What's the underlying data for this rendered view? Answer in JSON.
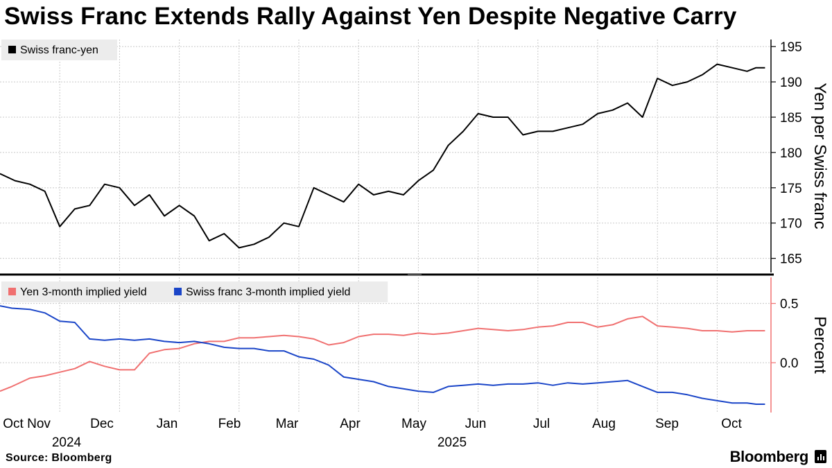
{
  "title": "Swiss Franc Extends Rally Against Yen Despite Negative Carry",
  "footer": {
    "source": "Source:  Bloomberg",
    "brand": "Bloomberg"
  },
  "icons": {
    "brand": "bloomberg-chart-icon"
  },
  "colors": {
    "chf_jpy": "#000000",
    "yen_yield": "#f07070",
    "chf_yield": "#1a45c8",
    "grid": "#c8c8c8",
    "legend_bg": "#ececec"
  },
  "chart_data": [
    {
      "type": "line",
      "title": "Swiss Franc Extends Rally Against Yen Despite Negative Carry",
      "ylabel": "Yen per Swiss franc",
      "ylim": [
        163,
        196
      ],
      "yticks": [
        "195",
        "190",
        "185",
        "180",
        "175",
        "170",
        "165"
      ],
      "xlim": [
        0,
        12.9
      ],
      "grid": true,
      "legend": "top-left",
      "series": [
        {
          "name": "Swiss franc-yen",
          "color": "#000000",
          "x": [
            0,
            0.25,
            0.5,
            0.75,
            1.0,
            1.25,
            1.5,
            1.75,
            2.0,
            2.25,
            2.5,
            2.75,
            3.0,
            3.25,
            3.5,
            3.75,
            4.0,
            4.25,
            4.5,
            4.75,
            5.0,
            5.25,
            5.5,
            5.75,
            6.0,
            6.25,
            6.5,
            6.75,
            7.0,
            7.25,
            7.5,
            7.75,
            8.0,
            8.25,
            8.5,
            8.75,
            9.0,
            9.25,
            9.5,
            9.75,
            10.0,
            10.25,
            10.5,
            10.75,
            11.0,
            11.25,
            11.5,
            11.75,
            12.0,
            12.25,
            12.5,
            12.65,
            12.8
          ],
          "values": [
            177,
            176,
            175.5,
            174.5,
            169.5,
            172,
            172.5,
            175.5,
            175,
            172.5,
            174,
            171,
            172.5,
            171,
            167.5,
            168.5,
            166.5,
            167,
            168,
            170,
            169.5,
            175,
            174,
            173,
            175.5,
            174,
            174.5,
            174,
            176,
            177.5,
            181,
            183,
            185.5,
            185,
            185,
            182.5,
            183,
            183,
            183.5,
            184,
            185.5,
            186,
            187,
            185,
            190.5,
            189.5,
            190,
            191,
            192.5,
            192,
            191.5,
            192,
            192
          ]
        }
      ]
    },
    {
      "type": "line",
      "ylabel": "Percent",
      "ylim": [
        -0.42,
        0.72
      ],
      "yticks": [
        "0.5",
        "0.0"
      ],
      "xlim": [
        0,
        12.9
      ],
      "grid": true,
      "legend": "top-left",
      "x_tick_labels": [
        "Oct",
        "Nov",
        "Dec",
        "Jan",
        "Feb",
        "Mar",
        "Apr",
        "May",
        "Jun",
        "Jul",
        "Aug",
        "Sep",
        "Oct"
      ],
      "year_labels": [
        "2024",
        "2025"
      ],
      "series": [
        {
          "name": "Yen 3-month implied yield",
          "color": "#f07070",
          "x": [
            0,
            0.2,
            0.5,
            0.75,
            1.0,
            1.25,
            1.5,
            1.75,
            2.0,
            2.25,
            2.5,
            2.75,
            3.0,
            3.25,
            3.5,
            3.75,
            4.0,
            4.25,
            4.5,
            4.75,
            5.0,
            5.25,
            5.5,
            5.75,
            6.0,
            6.25,
            6.5,
            6.75,
            7.0,
            7.25,
            7.5,
            7.75,
            8.0,
            8.25,
            8.5,
            8.75,
            9.0,
            9.25,
            9.5,
            9.75,
            10.0,
            10.25,
            10.5,
            10.75,
            11.0,
            11.25,
            11.5,
            11.75,
            12.0,
            12.25,
            12.5,
            12.65,
            12.8
          ],
          "values": [
            -0.24,
            -0.2,
            -0.13,
            -0.11,
            -0.08,
            -0.05,
            0.01,
            -0.03,
            -0.06,
            -0.06,
            0.08,
            0.11,
            0.12,
            0.16,
            0.18,
            0.18,
            0.21,
            0.21,
            0.22,
            0.23,
            0.22,
            0.2,
            0.15,
            0.17,
            0.22,
            0.24,
            0.24,
            0.23,
            0.25,
            0.24,
            0.25,
            0.27,
            0.29,
            0.28,
            0.27,
            0.28,
            0.3,
            0.31,
            0.34,
            0.34,
            0.3,
            0.32,
            0.37,
            0.39,
            0.31,
            0.3,
            0.29,
            0.27,
            0.27,
            0.26,
            0.27,
            0.27,
            0.27
          ]
        },
        {
          "name": "Swiss franc 3-month implied yield",
          "color": "#1a45c8",
          "x": [
            0,
            0.2,
            0.5,
            0.75,
            1.0,
            1.25,
            1.5,
            1.75,
            2.0,
            2.25,
            2.5,
            2.75,
            3.0,
            3.25,
            3.5,
            3.75,
            4.0,
            4.25,
            4.5,
            4.75,
            5.0,
            5.25,
            5.5,
            5.75,
            6.0,
            6.25,
            6.5,
            6.75,
            7.0,
            7.25,
            7.5,
            7.75,
            8.0,
            8.25,
            8.5,
            8.75,
            9.0,
            9.25,
            9.5,
            9.75,
            10.0,
            10.25,
            10.5,
            10.75,
            11.0,
            11.25,
            11.5,
            11.75,
            12.0,
            12.25,
            12.5,
            12.65,
            12.8
          ],
          "values": [
            0.48,
            0.46,
            0.45,
            0.42,
            0.35,
            0.34,
            0.2,
            0.19,
            0.2,
            0.19,
            0.2,
            0.18,
            0.17,
            0.18,
            0.16,
            0.13,
            0.12,
            0.12,
            0.1,
            0.1,
            0.05,
            0.03,
            -0.02,
            -0.12,
            -0.14,
            -0.16,
            -0.2,
            -0.22,
            -0.24,
            -0.25,
            -0.2,
            -0.19,
            -0.18,
            -0.19,
            -0.18,
            -0.18,
            -0.17,
            -0.19,
            -0.17,
            -0.18,
            -0.17,
            -0.16,
            -0.15,
            -0.2,
            -0.25,
            -0.25,
            -0.27,
            -0.3,
            -0.32,
            -0.34,
            -0.34,
            -0.35,
            -0.35
          ]
        }
      ]
    }
  ]
}
